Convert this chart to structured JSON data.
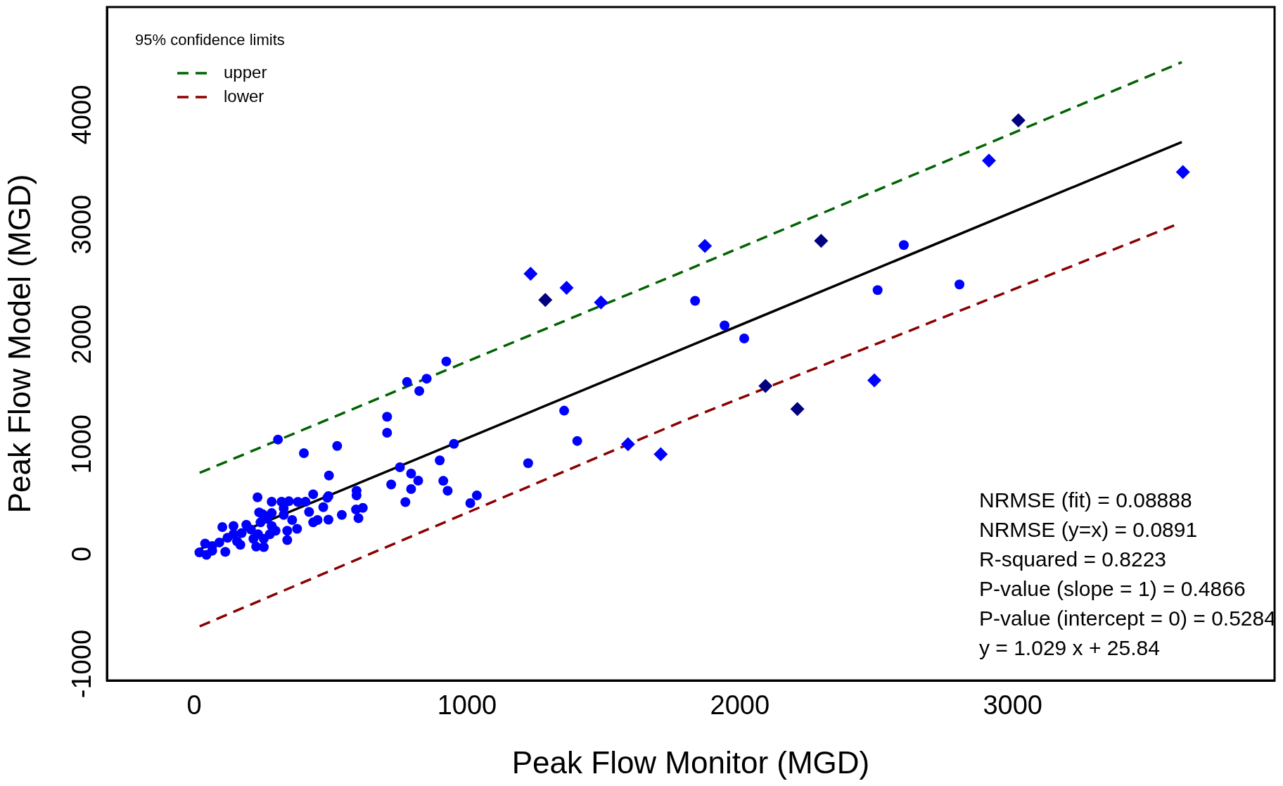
{
  "chart_data": {
    "type": "scatter",
    "xlabel": "Peak Flow Monitor (MGD)",
    "ylabel": "Peak Flow Model (MGD)",
    "legend_title": "95% confidence limits",
    "legend": "top left",
    "grid": false,
    "xlim": [
      -320,
      3960
    ],
    "ylim": [
      -1150,
      4980
    ],
    "xticks": [
      0,
      1000,
      2000,
      3000
    ],
    "yticks": [
      -1000,
      0,
      1000,
      2000,
      3000,
      4000
    ],
    "series": [
      {
        "color": "#0000ff",
        "marker": "circle",
        "x": [
          707,
          707,
          307,
          402,
          524,
          494,
          952,
          900,
          754,
          795,
          821,
          722,
          795,
          774,
          913,
          929,
          1036,
          1012,
          595,
          595,
          593,
          618,
          602,
          541,
          492,
          452,
          436,
          473,
          488,
          421,
          436,
          492,
          408,
          380,
          347,
          320,
          284,
          232,
          284,
          328,
          359,
          377,
          341,
          341,
          251,
          243,
          268,
          284,
          277,
          255,
          255,
          227,
          298,
          191,
          174,
          144,
          103,
          122,
          169,
          217,
          92,
          114,
          66,
          40,
          19,
          45,
          66,
          144,
          157,
          208,
          234,
          328,
          238,
          924,
          852,
          780,
          825,
          1356,
          1404,
          1224,
          1836,
          1944,
          2016,
          2505,
          2601,
          2805
        ],
        "values": [
          1250,
          1105,
          1043,
          919,
          985,
          716,
          1004,
          853,
          791,
          733,
          669,
          634,
          592,
          474,
          667,
          577,
          534,
          464,
          577,
          534,
          406,
          421,
          327,
          357,
          314,
          310,
          289,
          427,
          513,
          384,
          545,
          528,
          477,
          475,
          481,
          477,
          477,
          517,
          374,
          357,
          310,
          230,
          213,
          128,
          363,
          289,
          321,
          256,
          181,
          139,
          64,
          68,
          213,
          267,
          192,
          256,
          246,
          149,
          85,
          139,
          106,
          21,
          74,
          96,
          15,
          -7,
          31,
          182,
          117,
          224,
          181,
          416,
          380,
          1754,
          1597,
          1567,
          1485,
          1306,
          1030,
          828,
          2306,
          2082,
          1963,
          2403,
          2813,
          2455
        ]
      },
      {
        "color": "#0000ff",
        "marker": "diamond",
        "x": [
          1233,
          1365,
          1491,
          1872,
          2913,
          3624,
          2493,
          1590,
          1710
        ],
        "values": [
          2552,
          2425,
          2291,
          2806,
          3582,
          3478,
          1582,
          1000,
          910
        ]
      },
      {
        "color": "#000080",
        "marker": "diamond",
        "x": [
          1287,
          3021,
          2298,
          2094,
          2211
        ],
        "values": [
          2313,
          3948,
          2851,
          1530,
          1321
        ]
      },
      {
        "type": "line",
        "color": "#000000",
        "line_style": "solid",
        "x": [
          20,
          3620
        ],
        "values": [
          46,
          3751
        ]
      },
      {
        "type": "line",
        "name": "upper",
        "color": "#006400",
        "line_style": "dashed",
        "x": [
          20,
          1800,
          3620
        ],
        "values": [
          740,
          2580,
          4478
        ]
      },
      {
        "type": "line",
        "name": "lower",
        "color": "#8b0000",
        "line_style": "dashed",
        "x": [
          20,
          1800,
          3600
        ],
        "values": [
          -657,
          1220,
          3000
        ]
      }
    ],
    "annotations": [
      "NRMSE (fit) = 0.08888",
      "NRMSE (y=x) = 0.0891",
      "R-squared = 0.8223",
      "P-value (slope = 1) = 0.4866",
      "P-value (intercept = 0) = 0.5284",
      "y = 1.029 x + 25.84"
    ]
  }
}
